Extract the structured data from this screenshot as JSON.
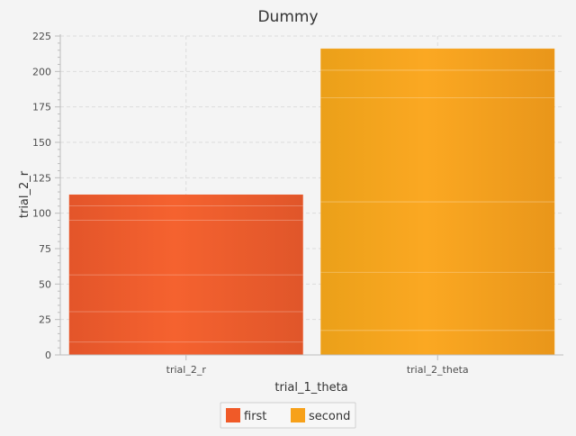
{
  "chart_data": {
    "type": "bar",
    "title": "Dummy",
    "xlabel": "trial_1_theta",
    "ylabel": "trial_2_r",
    "categories": [
      "trial_2_r",
      "trial_2_theta"
    ],
    "series": [
      {
        "name": "first",
        "color": "#f05a28",
        "values": [
          113,
          null
        ]
      },
      {
        "name": "second",
        "color": "#f7a11a",
        "values": [
          null,
          216
        ]
      }
    ],
    "ylim": [
      0,
      225
    ],
    "yticks": [
      0,
      25,
      50,
      75,
      100,
      125,
      150,
      175,
      200,
      225
    ],
    "grid": true,
    "legend": {
      "position": "bottom-center",
      "entries": [
        "first",
        "second"
      ]
    }
  },
  "colors": {
    "background": "#f4f4f4",
    "grid": "#dcdcdc",
    "axis": "#bdbdbd"
  }
}
